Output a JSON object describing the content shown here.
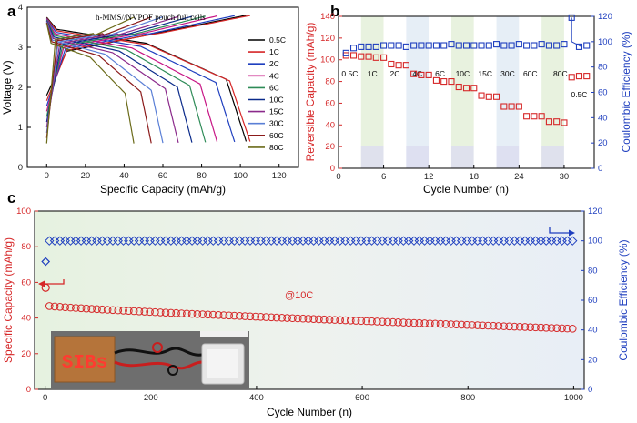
{
  "figure": {
    "panels": [
      "a",
      "b",
      "c"
    ]
  },
  "chart_data": [
    {
      "panel": "a",
      "type": "line",
      "title": "h-MMS//NVPOF pouch full cells",
      "xlabel": "Specific Capacity (mAh/g)",
      "ylabel": "Voltage (V)",
      "xlim": [
        -10,
        130
      ],
      "ylim": [
        0,
        4
      ],
      "xticks": [
        "0",
        "20",
        "40",
        "60",
        "80",
        "100",
        "120"
      ],
      "yticks": [
        "0",
        "1",
        "2",
        "3",
        "4"
      ],
      "legend_position": "right",
      "series": [
        {
          "name": "0.5C",
          "color": "#000000",
          "capacity": 103
        },
        {
          "name": "1C",
          "color": "#d62728",
          "capacity": 105
        },
        {
          "name": "2C",
          "color": "#1f3fbf",
          "capacity": 97
        },
        {
          "name": "4C",
          "color": "#c71585",
          "capacity": 88
        },
        {
          "name": "6C",
          "color": "#2e8b57",
          "capacity": 82
        },
        {
          "name": "10C",
          "color": "#0a2a8a",
          "capacity": 75
        },
        {
          "name": "15C",
          "color": "#8b2a8b",
          "capacity": 68
        },
        {
          "name": "30C",
          "color": "#5a7fd6",
          "capacity": 60
        },
        {
          "name": "60C",
          "color": "#8b1a1a",
          "capacity": 54
        },
        {
          "name": "80C",
          "color": "#6b6b1a",
          "capacity": 45
        }
      ]
    },
    {
      "panel": "b",
      "type": "scatter",
      "xlabel": "Cycle Number (n)",
      "ylabel": "Reversible Capacity (mAh/g)",
      "y2label": "Coulombic Efficiency (%)",
      "xlim": [
        0,
        34
      ],
      "ylim": [
        0,
        140
      ],
      "y2lim": [
        0,
        120
      ],
      "xticks": [
        "0",
        "6",
        "12",
        "18",
        "24",
        "30"
      ],
      "yticks": [
        "0",
        "20",
        "40",
        "60",
        "80",
        "100",
        "120",
        "140"
      ],
      "y2ticks": [
        "0",
        "20",
        "40",
        "60",
        "80",
        "100",
        "120"
      ],
      "rate_labels": [
        "0.5C",
        "1C",
        "2C",
        "4C",
        "6C",
        "10C",
        "15C",
        "30C",
        "60C",
        "80C",
        "0.5C"
      ],
      "cycles": [
        1,
        2,
        3,
        4,
        5,
        6,
        7,
        8,
        9,
        10,
        11,
        12,
        13,
        14,
        15,
        16,
        17,
        18,
        19,
        20,
        21,
        22,
        23,
        24,
        25,
        26,
        27,
        28,
        29,
        30,
        31,
        32,
        33
      ],
      "capacity": [
        104,
        104,
        103,
        103,
        102,
        102,
        96,
        95,
        95,
        87,
        86,
        86,
        81,
        80,
        80,
        75,
        74,
        74,
        67,
        66,
        66,
        57,
        57,
        57,
        48,
        48,
        48,
        43,
        43,
        42,
        84,
        85,
        85
      ],
      "efficiency": [
        91,
        95,
        96,
        96,
        96,
        97,
        97,
        97,
        96,
        97,
        97,
        97,
        97,
        97,
        98,
        97,
        97,
        97,
        97,
        97,
        98,
        97,
        97,
        98,
        97,
        97,
        98,
        97,
        97,
        98,
        119,
        96,
        97
      ]
    },
    {
      "panel": "c",
      "type": "scatter",
      "xlabel": "Cycle Number (n)",
      "ylabel": "Specific Capacity (mAh/g)",
      "y2label": "Coulombic Efficiency (%)",
      "annotation": "@10C",
      "photo_text": "SIBs",
      "xlim": [
        -20,
        1020
      ],
      "ylim": [
        0,
        100
      ],
      "y2lim": [
        0,
        120
      ],
      "xticks": [
        "0",
        "200",
        "400",
        "600",
        "800",
        "1000"
      ],
      "yticks": [
        "0",
        "20",
        "40",
        "60",
        "80",
        "100"
      ],
      "y2ticks": [
        "0",
        "20",
        "40",
        "60",
        "80",
        "100",
        "120"
      ],
      "capacity_start": 47,
      "capacity_end": 34,
      "capacity_first": 57,
      "efficiency_first": 86,
      "efficiency_steady": 100
    }
  ]
}
